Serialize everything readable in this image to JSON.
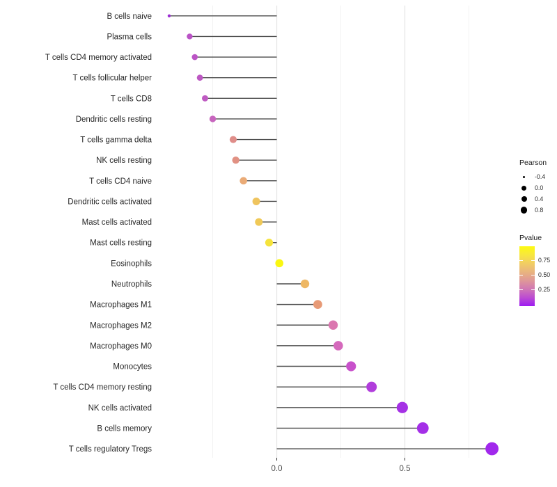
{
  "chart_data": {
    "type": "lollipop",
    "title": "",
    "xlabel": "",
    "ylabel": "",
    "grid": "vertical-only",
    "x_axis": {
      "xlim": [
        -0.477,
        0.909
      ],
      "tick_values": [
        0.0,
        0.5
      ],
      "tick_labels": [
        "0.0",
        "0.5"
      ],
      "major_gridlines": [
        0.0,
        0.5
      ],
      "minor_gridlines": [
        -0.25,
        0.25,
        0.75
      ]
    },
    "series_note": "size = Pearson correlation, color = P value",
    "points": [
      {
        "label": "B cells naive",
        "pearson": -0.42,
        "pvalue": 0.05,
        "color": "#9B2BD2",
        "radius": 2.2
      },
      {
        "label": "Plasma cells",
        "pearson": -0.34,
        "pvalue": 0.12,
        "color": "#BA53C6",
        "radius": 4.2
      },
      {
        "label": "T cells CD4 memory activated",
        "pearson": -0.32,
        "pvalue": 0.13,
        "color": "#BB55C5",
        "radius": 4.3
      },
      {
        "label": "T cells follicular helper",
        "pearson": -0.3,
        "pvalue": 0.14,
        "color": "#BD58C3",
        "radius": 4.4
      },
      {
        "label": "T cells CD8",
        "pearson": -0.28,
        "pvalue": 0.15,
        "color": "#BF5BC2",
        "radius": 4.5
      },
      {
        "label": "Dendritic cells resting",
        "pearson": -0.25,
        "pvalue": 0.19,
        "color": "#C765BE",
        "radius": 4.7
      },
      {
        "label": "T cells gamma delta",
        "pearson": -0.17,
        "pvalue": 0.45,
        "color": "#DF8D89",
        "radius": 5.1
      },
      {
        "label": "NK cells resting",
        "pearson": -0.16,
        "pvalue": 0.47,
        "color": "#E19183",
        "radius": 5.2
      },
      {
        "label": "T cells CD4 naive",
        "pearson": -0.13,
        "pvalue": 0.6,
        "color": "#EAAB77",
        "radius": 5.3
      },
      {
        "label": "Dendritic cells activated",
        "pearson": -0.08,
        "pvalue": 0.72,
        "color": "#EFC45E",
        "radius": 5.5
      },
      {
        "label": "Mast cells activated",
        "pearson": -0.07,
        "pvalue": 0.74,
        "color": "#F0C957",
        "radius": 5.5
      },
      {
        "label": "Mast cells resting",
        "pearson": -0.03,
        "pvalue": 0.85,
        "color": "#F5E33C",
        "radius": 5.6
      },
      {
        "label": "Eosinophils",
        "pearson": 0.01,
        "pvalue": 0.97,
        "color": "#FAF711",
        "radius": 5.8
      },
      {
        "label": "Neutrophils",
        "pearson": 0.11,
        "pvalue": 0.65,
        "color": "#EEB763",
        "radius": 6.2
      },
      {
        "label": "Macrophages M1",
        "pearson": 0.16,
        "pvalue": 0.52,
        "color": "#E79A76",
        "radius": 6.4
      },
      {
        "label": "Macrophages M2",
        "pearson": 0.22,
        "pvalue": 0.35,
        "color": "#DB77B0",
        "radius": 6.7
      },
      {
        "label": "Macrophages M0",
        "pearson": 0.24,
        "pvalue": 0.31,
        "color": "#D569BC",
        "radius": 6.8
      },
      {
        "label": "Monocytes",
        "pearson": 0.29,
        "pvalue": 0.22,
        "color": "#C851CB",
        "radius": 7.1
      },
      {
        "label": "T cells CD4 memory resting",
        "pearson": 0.37,
        "pvalue": 0.12,
        "color": "#B13DDC",
        "radius": 7.5
      },
      {
        "label": "NK cells activated",
        "pearson": 0.49,
        "pvalue": 0.07,
        "color": "#A531E5",
        "radius": 8.1
      },
      {
        "label": "B cells memory",
        "pearson": 0.57,
        "pvalue": 0.06,
        "color": "#A42FE7",
        "radius": 8.4
      },
      {
        "label": "T cells regulatory  Tregs",
        "pearson": 0.84,
        "pvalue": 0.03,
        "color": "#A128EC",
        "radius": 9.4
      }
    ]
  },
  "legend_pearson": {
    "title": "Pearson",
    "dot_color": "#000000",
    "entries": [
      {
        "label": "-0.4",
        "diameter": 3
      },
      {
        "label": "0.0",
        "diameter": 7
      },
      {
        "label": "0.4",
        "diameter": 8
      },
      {
        "label": "0.8",
        "diameter": 9.5
      }
    ]
  },
  "legend_pvalue": {
    "title": "Pvalue",
    "gradient_stops_bottom_to_top": [
      "#9D1BF2",
      "#BC4CD2",
      "#D077B4",
      "#DF9898",
      "#E9B47F",
      "#F1CD63",
      "#F8E73E",
      "#FDFA10"
    ],
    "ticks": [
      {
        "label": "0.75",
        "offset_pct": 23.3
      },
      {
        "label": "0.50",
        "offset_pct": 47.7
      },
      {
        "label": "0.25",
        "offset_pct": 72.1
      }
    ]
  },
  "style_colors": {
    "stem": "#4d4d4d",
    "major_gridline": "#e5e5e5",
    "minor_gridline": "#f2f2f2",
    "axis_text": "#4d4d4d",
    "category_text": "#262626",
    "tick_mark": "#333333"
  }
}
